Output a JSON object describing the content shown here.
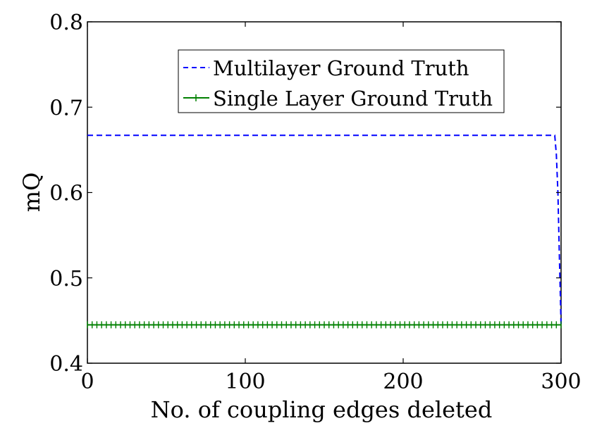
{
  "chart_data": {
    "type": "line",
    "xlabel": "No. of coupling edges deleted",
    "ylabel": "mQ",
    "xlim": [
      0,
      300
    ],
    "ylim": [
      0.4,
      0.8
    ],
    "xticks": [
      "0",
      "100",
      "200",
      "300"
    ],
    "yticks": [
      "0.4",
      "0.5",
      "0.6",
      "0.7",
      "0.8"
    ],
    "grid": false,
    "legend_position": "top-center",
    "series": [
      {
        "name": "Multilayer Ground Truth",
        "color": "#0000ff",
        "style": "dashed",
        "x": [
          0,
          296,
          297,
          298,
          299,
          300
        ],
        "y": [
          0.667,
          0.667,
          0.645,
          0.6,
          0.52,
          0.445
        ]
      },
      {
        "name": "Single Layer Ground Truth",
        "color": "#008000",
        "style": "solid-plus-markers",
        "x": [
          0,
          300
        ],
        "y": [
          0.445,
          0.445
        ]
      }
    ]
  }
}
